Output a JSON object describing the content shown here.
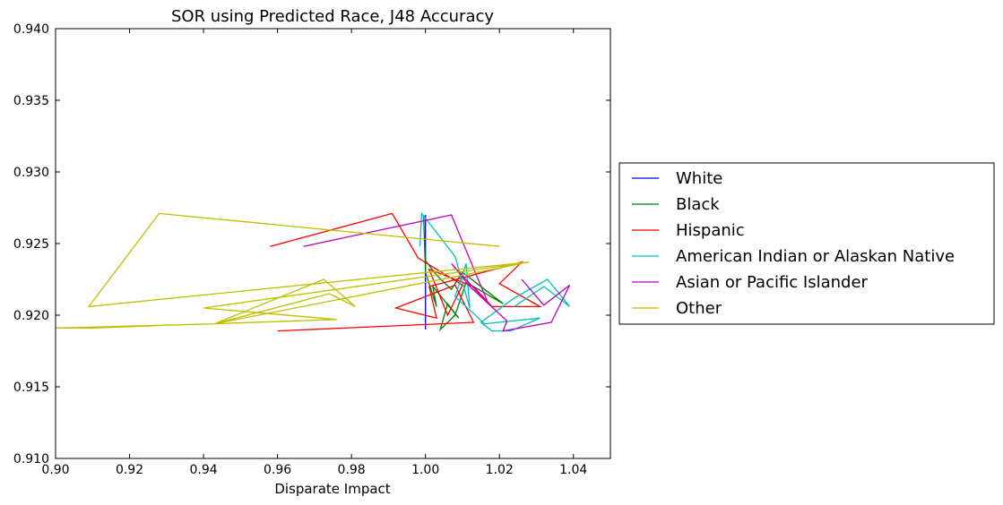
{
  "chart_data": {
    "type": "line",
    "title": "SOR using Predicted Race, J48 Accuracy",
    "xlabel": "Disparate Impact",
    "ylabel": "",
    "xlim": [
      0.9,
      1.05
    ],
    "ylim": [
      0.91,
      0.94
    ],
    "xticks": [
      "0.90",
      "0.92",
      "0.94",
      "0.96",
      "0.98",
      "1.00",
      "1.02",
      "1.04"
    ],
    "yticks": [
      "0.910",
      "0.915",
      "0.920",
      "0.925",
      "0.930",
      "0.935",
      "0.940"
    ],
    "legend_position": "right",
    "series": [
      {
        "name": "White",
        "color": "#0000ff",
        "points": [
          [
            1.0,
            0.927
          ],
          [
            1.0,
            0.92
          ],
          [
            1.0,
            0.9238
          ],
          [
            1.0,
            0.919
          ],
          [
            1.0,
            0.923
          ],
          [
            1.0,
            0.9208
          ],
          [
            1.0,
            0.9224
          ],
          [
            1.0,
            0.9213
          ]
        ]
      },
      {
        "name": "Black",
        "color": "#008000",
        "points": [
          [
            0.9995,
            0.927
          ],
          [
            1.0,
            0.923
          ],
          [
            1.003,
            0.9206
          ],
          [
            1.002,
            0.922
          ],
          [
            1.009,
            0.9198
          ],
          [
            1.006,
            0.9208
          ],
          [
            1.004,
            0.919
          ],
          [
            1.008,
            0.92
          ],
          [
            1.011,
            0.9223
          ],
          [
            1.021,
            0.9208
          ],
          [
            1.01,
            0.923
          ],
          [
            1.007,
            0.9218
          ],
          [
            1.003,
            0.9228
          ],
          [
            1.0,
            0.9238
          ]
        ]
      },
      {
        "name": "Hispanic",
        "color": "#ff0000",
        "points": [
          [
            0.958,
            0.9248
          ],
          [
            0.991,
            0.9271
          ],
          [
            0.998,
            0.924
          ],
          [
            1.01,
            0.9221
          ],
          [
            1.006,
            0.92
          ],
          [
            1.001,
            0.9232
          ],
          [
            1.013,
            0.922
          ],
          [
            1.018,
            0.9206
          ],
          [
            1.031,
            0.9206
          ],
          [
            1.02,
            0.9222
          ],
          [
            1.026,
            0.9237
          ],
          [
            1.001,
            0.922
          ],
          [
            1.003,
            0.9198
          ],
          [
            0.992,
            0.9205
          ],
          [
            1.008,
            0.9221
          ],
          [
            1.013,
            0.9195
          ],
          [
            0.96,
            0.9189
          ]
        ]
      },
      {
        "name": "American Indian or Alaskan Native",
        "color": "#00bfbf",
        "points": [
          [
            0.9985,
            0.9248
          ],
          [
            0.999,
            0.9271
          ],
          [
            1.008,
            0.9241
          ],
          [
            1.012,
            0.9205
          ],
          [
            1.011,
            0.9236
          ],
          [
            1.008,
            0.9213
          ],
          [
            1.016,
            0.9194
          ],
          [
            1.031,
            0.9198
          ],
          [
            1.023,
            0.9189
          ],
          [
            1.018,
            0.9189
          ],
          [
            1.015,
            0.9195
          ],
          [
            1.024,
            0.9212
          ],
          [
            1.033,
            0.9225
          ],
          [
            1.039,
            0.9206
          ],
          [
            1.032,
            0.922
          ],
          [
            1.024,
            0.9206
          ]
        ]
      },
      {
        "name": "Asian or Pacific Islander",
        "color": "#bf00bf",
        "points": [
          [
            0.967,
            0.9248
          ],
          [
            1.007,
            0.927
          ],
          [
            1.017,
            0.9208
          ],
          [
            1.007,
            0.9236
          ],
          [
            1.012,
            0.922
          ],
          [
            1.022,
            0.9196
          ],
          [
            1.021,
            0.9189
          ],
          [
            1.034,
            0.9195
          ],
          [
            1.039,
            0.9221
          ],
          [
            1.032,
            0.9207
          ],
          [
            1.026,
            0.9225
          ]
        ]
      },
      {
        "name": "Other",
        "color": "#bfbf00",
        "points": [
          [
            1.02,
            0.9248
          ],
          [
            0.928,
            0.9271
          ],
          [
            0.909,
            0.9206
          ],
          [
            1.028,
            0.9237
          ],
          [
            0.94,
            0.9205
          ],
          [
            0.976,
            0.9197
          ],
          [
            0.943,
            0.9194
          ],
          [
            0.93,
            0.9193
          ],
          [
            0.92,
            0.9192
          ],
          [
            0.91,
            0.9191
          ],
          [
            0.9,
            0.9191
          ],
          [
            0.943,
            0.9194
          ],
          [
            0.9725,
            0.9225
          ],
          [
            0.981,
            0.9206
          ],
          [
            0.974,
            0.9215
          ],
          [
            0.943,
            0.9194
          ],
          [
            1.026,
            0.9236
          ]
        ]
      }
    ]
  }
}
